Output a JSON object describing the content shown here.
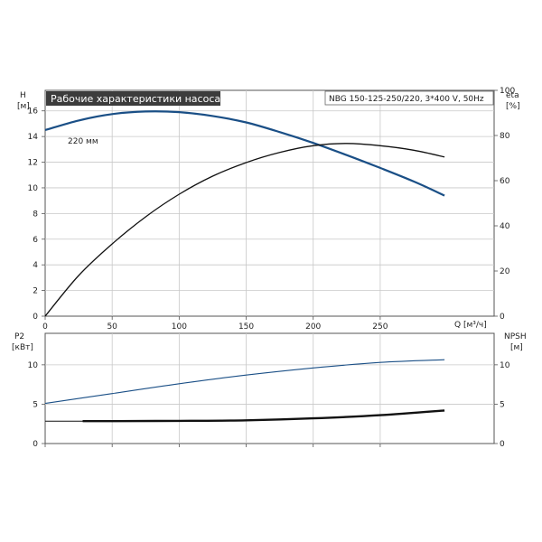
{
  "header": {
    "title": "Рабочие характеристики насоса",
    "pump_info": "NBG 150-125-250/220, 3*400 V, 50Hz"
  },
  "colors": {
    "head_curve": "#1a4f86",
    "eta_curve": "#111111",
    "p2_curve": "#1a4f86",
    "npsh_curve": "#111111",
    "grid": "#c8c8c8",
    "title_bg": "#3c3c3c",
    "title_text": "#ffffff"
  },
  "chart_data": [
    {
      "type": "line",
      "title": "Рабочие характеристики насоса",
      "xlabel": "Q [м³/ч]",
      "ylabel_left": [
        "H",
        "[м]"
      ],
      "ylabel_right": [
        "eta",
        "[%]"
      ],
      "xlim": [
        0,
        335
      ],
      "ylim_left": [
        0,
        17.6
      ],
      "ylim_right_eta": [
        0,
        100
      ],
      "x_ticks": [
        "0",
        "50",
        "100",
        "150",
        "200",
        "250"
      ],
      "y_left_ticks": [
        "0",
        "2",
        "4",
        "6",
        "8",
        "10",
        "12",
        "14",
        "16"
      ],
      "y_right_ticks": [
        "0",
        "20",
        "40",
        "60",
        "80",
        "100"
      ],
      "grid": true,
      "annotation": "220 мм",
      "series": [
        {
          "name": "H",
          "axis": "left",
          "x": [
            0,
            25,
            50,
            75,
            100,
            125,
            150,
            175,
            200,
            225,
            250,
            275,
            298
          ],
          "values": [
            14.5,
            15.25,
            15.75,
            15.95,
            15.9,
            15.6,
            15.1,
            14.35,
            13.5,
            12.55,
            11.55,
            10.5,
            9.4
          ]
        },
        {
          "name": "eta",
          "axis": "right",
          "x": [
            0,
            25,
            50,
            75,
            100,
            125,
            150,
            175,
            200,
            225,
            250,
            275,
            298
          ],
          "values": [
            0,
            18,
            32,
            44,
            54,
            62,
            68,
            72.5,
            75.5,
            76.5,
            75.5,
            73.5,
            70.5
          ]
        }
      ]
    },
    {
      "type": "line",
      "ylabel_left": [
        "P2",
        "[кВт]"
      ],
      "ylabel_right": [
        "NPSH",
        "[м]"
      ],
      "xlim": [
        0,
        335
      ],
      "ylim_left": [
        0,
        14
      ],
      "ylim_right": [
        0,
        14
      ],
      "y_left_ticks": [
        "0",
        "5",
        "10"
      ],
      "y_right_ticks": [
        "0",
        "5",
        "10"
      ],
      "grid": true,
      "series": [
        {
          "name": "P2",
          "axis": "left",
          "x": [
            0,
            50,
            100,
            150,
            200,
            250,
            298
          ],
          "values": [
            5.1,
            6.35,
            7.6,
            8.7,
            9.6,
            10.3,
            10.65
          ]
        },
        {
          "name": "NPSH",
          "axis": "right",
          "x": [
            0,
            28,
            50,
            100,
            150,
            200,
            250,
            298
          ],
          "values": [
            2.85,
            2.85,
            2.85,
            2.88,
            2.95,
            3.2,
            3.6,
            4.2
          ]
        }
      ]
    }
  ]
}
